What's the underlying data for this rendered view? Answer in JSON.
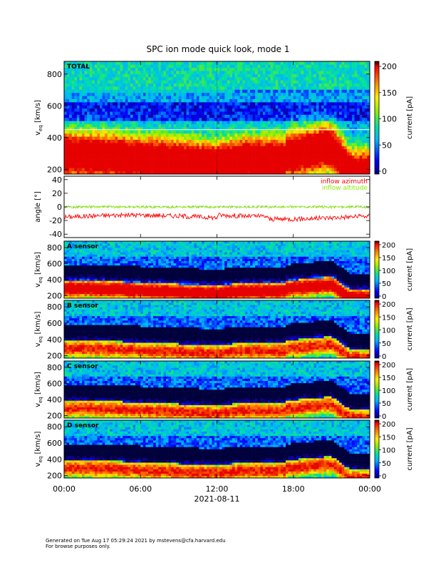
{
  "chart_data": {
    "title": "SPC ion mode quick look, mode 1",
    "type": "heatmap",
    "x_axis": {
      "tick_labels": [
        "00:00",
        "06:00",
        "12:00",
        "18:00",
        "00:00"
      ],
      "range_hours": [
        0,
        24
      ],
      "label": "2021-08-11"
    },
    "colorbar": {
      "label": "current [pA]",
      "ticks_main": [
        0,
        50,
        100,
        150,
        200
      ],
      "ticks_sensor": [
        0,
        50,
        100,
        150,
        200
      ],
      "range": [
        0,
        200
      ]
    },
    "panels": [
      {
        "type": "heatmap",
        "name": "TOTAL",
        "ylabel_main": "v",
        "ylabel_sub": "eq",
        "ylabel_unit": "[km/s]",
        "yticks": [
          200,
          400,
          600,
          800
        ],
        "ylim": [
          170,
          880
        ],
        "hline_value": 450
      },
      {
        "type": "line",
        "ylabel": "angle [°]",
        "yticks": [
          -40,
          -20,
          0,
          20,
          40
        ],
        "ylim": [
          -45,
          45
        ],
        "series": [
          {
            "name": "inflow azimuth",
            "color": "#ff0000",
            "mean": -15
          },
          {
            "name": "inflow altitude",
            "color": "#88ee00",
            "mean": 0
          }
        ]
      },
      {
        "type": "heatmap",
        "name": "A sensor",
        "yticks": [
          200,
          400,
          600,
          800
        ],
        "ylim": [
          170,
          880
        ]
      },
      {
        "type": "heatmap",
        "name": "B sensor",
        "yticks": [
          200,
          400,
          600,
          800
        ],
        "ylim": [
          170,
          880
        ]
      },
      {
        "type": "heatmap",
        "name": "C sensor",
        "yticks": [
          200,
          400,
          600,
          800
        ],
        "ylim": [
          170,
          880
        ]
      },
      {
        "type": "heatmap",
        "name": "D sensor",
        "yticks": [
          200,
          400,
          600,
          800
        ],
        "ylim": [
          170,
          880
        ]
      }
    ]
  },
  "footer": {
    "line1": "Generated on Tue Aug 17 05:29:24 2021 by mstevens@cfa.harvard.edu",
    "line2": "For browse purposes only."
  }
}
